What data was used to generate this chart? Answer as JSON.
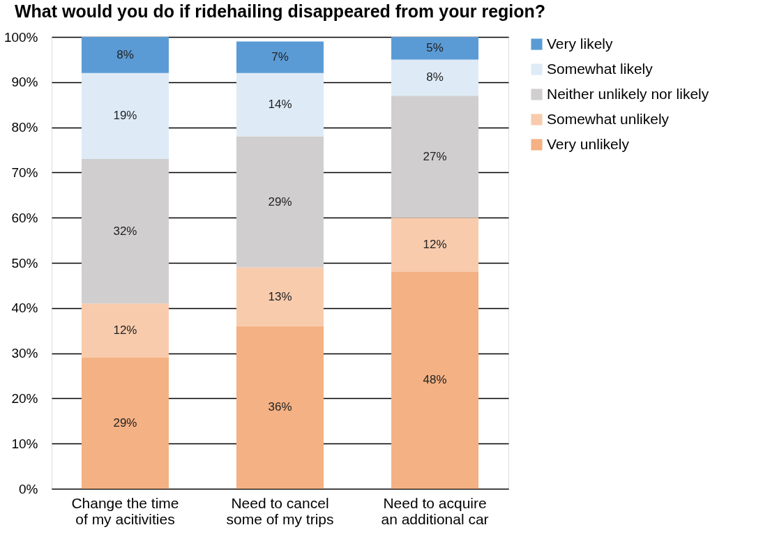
{
  "chart_data": {
    "type": "bar",
    "title": "What would you do if ridehailing disappeared from your region?",
    "categories": [
      "Change the time of my acitivities",
      "Need to cancel some of my trips",
      "Need to acquire an additional car"
    ],
    "stacked": true,
    "series": [
      {
        "name": "Very unlikely",
        "color": "#f4b183",
        "values": [
          29,
          36,
          48
        ],
        "value_labels": [
          "29%",
          "36%",
          "48%"
        ]
      },
      {
        "name": "Somewhat unlikely",
        "color": "#f8cbad",
        "values": [
          12,
          13,
          12
        ],
        "value_labels": [
          "12%",
          "13%",
          "12%"
        ]
      },
      {
        "name": "Neither unlikely nor likely",
        "color": "#d0cece",
        "values": [
          32,
          29,
          27
        ],
        "value_labels": [
          "32%",
          "29%",
          "27%"
        ]
      },
      {
        "name": "Somewhat likely",
        "color": "#deebf7",
        "values": [
          19,
          14,
          8
        ],
        "value_labels": [
          "19%",
          "14%",
          "8%"
        ]
      },
      {
        "name": "Very likely",
        "color": "#5b9bd5",
        "values": [
          8,
          7,
          5
        ],
        "value_labels": [
          "8%",
          "7%",
          "5%"
        ]
      }
    ],
    "ylim": [
      0,
      100
    ],
    "yticks": [
      {
        "value": 0,
        "label": "0%"
      },
      {
        "value": 10,
        "label": "10%"
      },
      {
        "value": 20,
        "label": "20%"
      },
      {
        "value": 30,
        "label": "30%"
      },
      {
        "value": 40,
        "label": "40%"
      },
      {
        "value": 50,
        "label": "50%"
      },
      {
        "value": 60,
        "label": "60%"
      },
      {
        "value": 70,
        "label": "70%"
      },
      {
        "value": 80,
        "label": "80%"
      },
      {
        "value": 90,
        "label": "90%"
      },
      {
        "value": 100,
        "label": "100%"
      }
    ],
    "grid": "y",
    "legend": "right"
  }
}
